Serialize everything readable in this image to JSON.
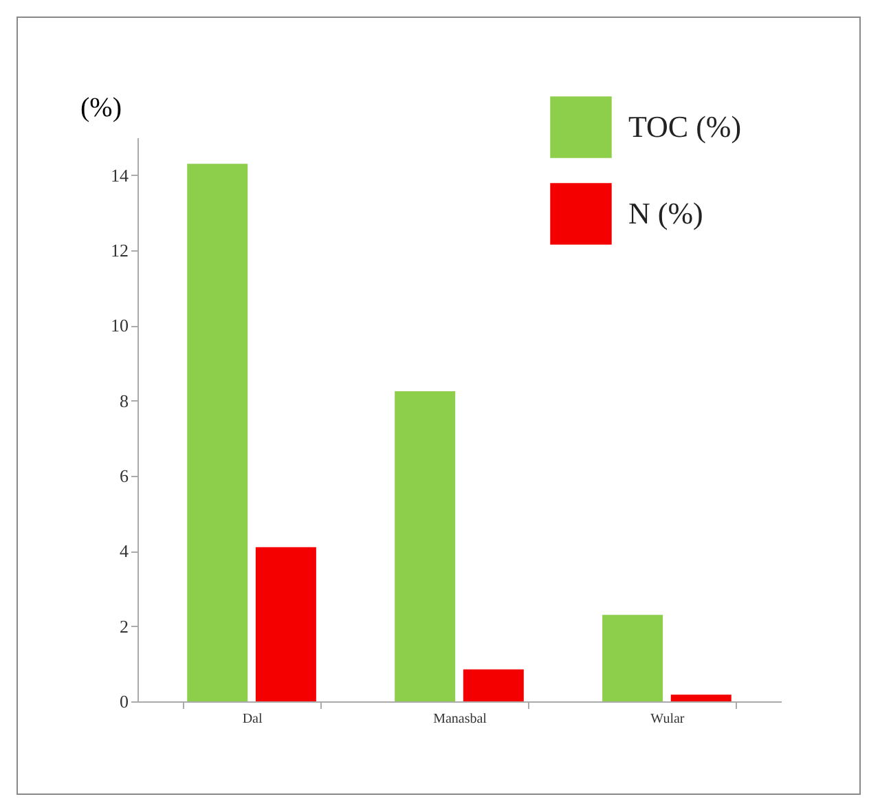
{
  "chart_data": {
    "type": "bar",
    "ylabel": "(%)",
    "categories": [
      "Dal",
      "Manasbal",
      "Wular"
    ],
    "series": [
      {
        "name": "TOC (%)",
        "color": "#8dce4b",
        "values": [
          14.3,
          8.25,
          2.3
        ]
      },
      {
        "name": "N (%)",
        "color": "#f50000",
        "values": [
          4.1,
          0.85,
          0.18
        ]
      }
    ],
    "ylim": [
      0,
      15
    ],
    "yticks": [
      0,
      2,
      4,
      6,
      8,
      10,
      12,
      14
    ],
    "grid": false,
    "legend": "top right"
  }
}
